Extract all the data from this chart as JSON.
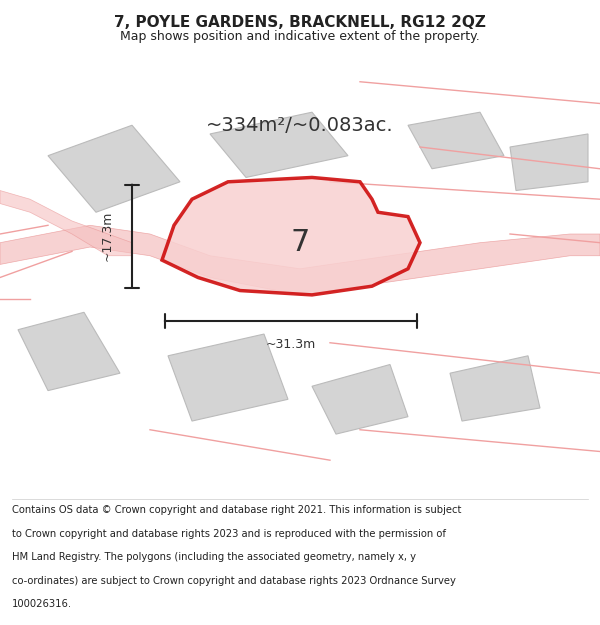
{
  "title": "7, POYLE GARDENS, BRACKNELL, RG12 2QZ",
  "subtitle": "Map shows position and indicative extent of the property.",
  "area_text": "~334m²/~0.083ac.",
  "width_label": "~31.3m",
  "height_label": "~17.3m",
  "number_label": "7",
  "footer_lines": [
    "Contains OS data © Crown copyright and database right 2021. This information is subject",
    "to Crown copyright and database rights 2023 and is reproduced with the permission of",
    "HM Land Registry. The polygons (including the associated geometry, namely x, y",
    "co-ordinates) are subject to Crown copyright and database rights 2023 Ordnance Survey",
    "100026316."
  ],
  "map_bg": "#e8e8e8",
  "highlight_color": "#cc0000",
  "title_color": "#222222",
  "footer_color": "#222222",
  "building_fill": "#d4d4d4",
  "building_stroke": "#bbbbbb",
  "road_fill": "#f5c0c0",
  "road_stroke": "#e89090",
  "line_color": "#f0a0a0"
}
